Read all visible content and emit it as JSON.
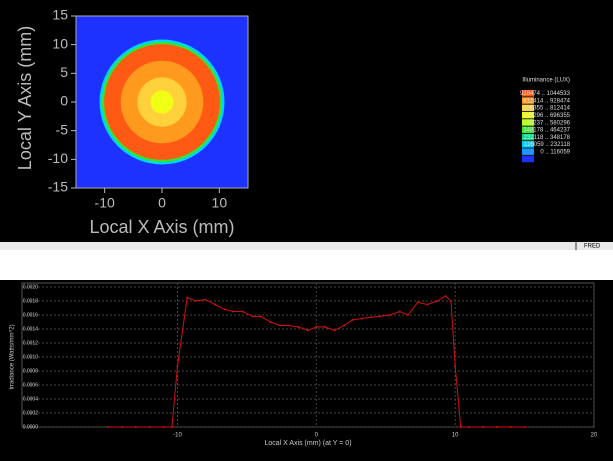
{
  "footer_label": "FRED",
  "chart_data": [
    {
      "type": "contour",
      "xlabel": "Local X Axis (mm)",
      "ylabel": "Local Y Axis (mm)",
      "xlim": [
        -15,
        15
      ],
      "ylim": [
        -15,
        15
      ],
      "xticks": [
        -10,
        0,
        10
      ],
      "yticks": [
        -15,
        -10,
        -5,
        0,
        5,
        10,
        15
      ],
      "background_color": "#1e32ff",
      "rings": [
        {
          "radius": 10.9,
          "color": "#00d2ff"
        },
        {
          "radius": 10.5,
          "color": "#32e632"
        },
        {
          "radius": 10.1,
          "color": "#ff5a14"
        },
        {
          "radius": 7.2,
          "color": "#ff9a1e"
        },
        {
          "radius": 4.3,
          "color": "#ffd23c"
        },
        {
          "radius": 2.0,
          "color": "#f0ff14"
        }
      ],
      "legend": {
        "title": "Illuminance (LUX)",
        "levels": [
          {
            "label": "928474 .. 1044533",
            "color": "#ff5a14"
          },
          {
            "label": "812414 .. 928474",
            "color": "#ff9a1e"
          },
          {
            "label": "696355 .. 812414",
            "color": "#ffd23c"
          },
          {
            "label": "580296 .. 696355",
            "color": "#f0ff14"
          },
          {
            "label": "464237 .. 580296",
            "color": "#b4ff14"
          },
          {
            "label": "348178 .. 464237",
            "color": "#32e632"
          },
          {
            "label": "232118 .. 348178",
            "color": "#00dc8c"
          },
          {
            "label": "116059 .. 232118",
            "color": "#00d2ff"
          },
          {
            "label": "0 .. 116059",
            "color": "#1e96ff"
          },
          {
            "label": "",
            "color": "#1e32ff"
          }
        ]
      }
    },
    {
      "type": "line",
      "xlabel": "Local X Axis (mm) (at Y = 0)",
      "ylabel": "Irradiance (Watts/mm^2)",
      "xlim": [
        -21.2,
        20
      ],
      "ylim": [
        0,
        0.002
      ],
      "xticks": [
        -10,
        0,
        10,
        20
      ],
      "yticks": [
        {
          "value": 0,
          "label": "0.0000"
        },
        {
          "value": 0.0002,
          "label": "0.0002"
        },
        {
          "value": 0.0004,
          "label": "0.0004"
        },
        {
          "value": 0.0006,
          "label": "0.0006"
        },
        {
          "value": 0.0008,
          "label": "0.0008"
        },
        {
          "value": 0.001,
          "label": "0.0010"
        },
        {
          "value": 0.0012,
          "label": "0.0012"
        },
        {
          "value": 0.0014,
          "label": "0.0014"
        },
        {
          "value": 0.0016,
          "label": "0.0016"
        },
        {
          "value": 0.0018,
          "label": "0.0018"
        },
        {
          "value": 0.002,
          "label": "0.0020"
        }
      ],
      "grid": true,
      "x": [
        -15,
        -14,
        -13,
        -12,
        -11,
        -10.4,
        -10,
        -9.3,
        -8.7,
        -8,
        -7.3,
        -6.6,
        -6,
        -5.3,
        -4.6,
        -4,
        -3.3,
        -2.6,
        -2,
        -1.3,
        -0.6,
        0,
        0.6,
        1.3,
        2,
        2.6,
        3.3,
        4,
        4.6,
        5.3,
        6,
        6.6,
        7.3,
        8,
        8.7,
        9.3,
        9.7,
        10,
        10.4,
        11,
        12,
        13,
        14,
        15
      ],
      "series": [
        {
          "color": "#d01010",
          "values": [
            0,
            0,
            0,
            0,
            0,
            0,
            0.00087,
            0.00185,
            0.0018,
            0.00182,
            0.00175,
            0.00168,
            0.00165,
            0.00165,
            0.00158,
            0.00158,
            0.0015,
            0.00145,
            0.00145,
            0.00143,
            0.00138,
            0.00143,
            0.00143,
            0.00138,
            0.00145,
            0.00153,
            0.00155,
            0.00157,
            0.00158,
            0.0016,
            0.00165,
            0.0016,
            0.00178,
            0.00175,
            0.0018,
            0.00187,
            0.0018,
            0.00087,
            0,
            0,
            0,
            0,
            0,
            0
          ]
        }
      ]
    }
  ]
}
